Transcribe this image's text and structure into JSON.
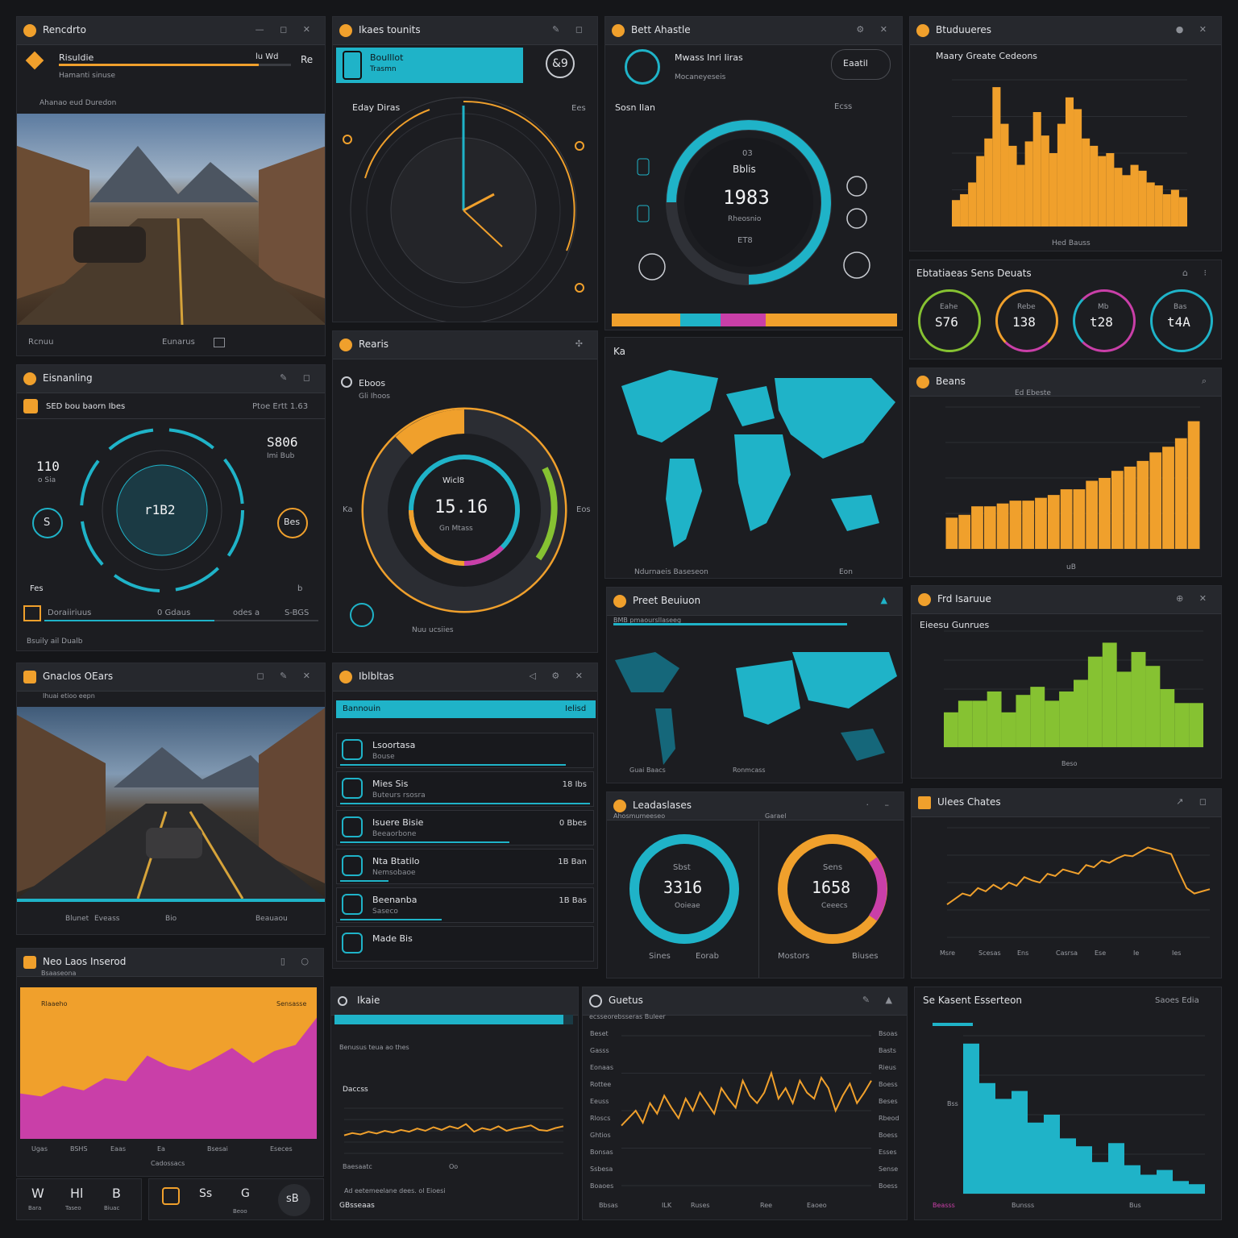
{
  "colors": {
    "accent_orange": "#f0a02c",
    "accent_cyan": "#1fb3c8",
    "accent_magenta": "#c93fa8",
    "accent_green": "#86c232",
    "bg": "#151619",
    "panel": "#1c1d21"
  },
  "p1": {
    "title": "Rencdrto",
    "bar_label": "Risuldie",
    "bar_value": "lu Wd",
    "tag": "Re",
    "sub": "Hamanti sinuse",
    "caption": "Ahanao eud Duredon",
    "footer_left": "Rcnuu",
    "footer_mid": "Eunarus",
    "progress": 0.86
  },
  "p2": {
    "title": "Ikaes tounits",
    "chip_title": "Boulllot",
    "chip_sub": "Trasmn",
    "badge": "&9",
    "gauge_title": "Eday Diras",
    "corner": "Ees"
  },
  "p3": {
    "title": "Bett Ahastle",
    "sub_title": "Mwass Inri Iiras",
    "sub_caption": "Mocaneyeseis",
    "button": "Eaatil",
    "section": "Sosn Ilan",
    "corner": "Ecss",
    "ring_small": "03",
    "ring_label": "Bblis",
    "value": "1983",
    "ring_caption": "Rheosnio",
    "ring_low": "ET8"
  },
  "p4": {
    "title": "Btuduueres",
    "sub_title": "Maary Greate Cedeons",
    "xlabel": "Hed Bauss"
  },
  "p5": {
    "title": "Ebtatiaeas Sens Deuats",
    "gauges": [
      {
        "value": "S76",
        "label": "Eahe"
      },
      {
        "value": "138",
        "label": "Rebe"
      },
      {
        "value": "t28",
        "label": "Mb"
      },
      {
        "value": "t4A",
        "label": "Bas"
      }
    ]
  },
  "p6": {
    "title": "Beans",
    "legend": "Ed Ebeste",
    "xlabel": "uB"
  },
  "p7": {
    "title": "Eisnanling",
    "sub": "SED bou baorn Ibes",
    "right_label": "Ptoe Ertt 1.63",
    "value_right": "S806",
    "value_right_sub": "Imi Bub",
    "value_left": "110",
    "value_left_sub": "o Sia",
    "center": "r1B2",
    "small_left": "S",
    "small_right": "Bes",
    "foot_left": "Fes",
    "foot_right": "b",
    "bar_label": "Doraiiriuus",
    "bar_mid": "0 Gdaus",
    "bar_end": "odes a",
    "bar_value": "S-BGS",
    "caption": "Bsuily ail Dualb",
    "progress": 0.62
  },
  "p8": {
    "title": "Rearis",
    "sub_title": "Eboos",
    "sub_caption": "Gli Ihoos",
    "value": "15.16",
    "caption": "Gn Mtass",
    "top_label": "Wicl8",
    "side_left": "Ka",
    "side_right": "Eos",
    "footer": "Nuu ucsiies"
  },
  "p9": {
    "title": "Ka",
    "footer_left": "Ndurnaeis Baseseon",
    "footer_right": "Eon"
  },
  "p10": {
    "title": "Preet Beuiuon",
    "sub": "BMB pmaoursllaseeg",
    "footer_left": "Guai Baacs",
    "footer_right": "Ronmcass"
  },
  "p11": {
    "title": "Frd Isaruue",
    "sub_title": "Eieesu Gunrues",
    "xlabel": "Beso"
  },
  "p12": {
    "title": "Gnaclos OEars",
    "sub": "Ihuai etioo eepn",
    "footer": [
      "Blunet",
      "Eveass",
      "Bio",
      "Beauaou"
    ]
  },
  "p13": {
    "title": "Iblbltas",
    "banner": "Bannouin",
    "banner_right": "Ielisd",
    "rows": [
      {
        "title": "Lsoortasa",
        "sub": "Bouse",
        "value": ""
      },
      {
        "title": "Mies Sis",
        "sub": "Buteurs rsosra",
        "value": "18  Ibs"
      },
      {
        "title": "Isuere Bisie",
        "sub": "Beeaorbone",
        "value": "0  Bbes"
      },
      {
        "title": "Nta Btatilo",
        "sub": "Nemsobaoe",
        "value": "1B  Ban"
      },
      {
        "title": "Beenanba",
        "sub": "Saseco",
        "value": "1B  Bas"
      },
      {
        "title": "Made Bis",
        "sub": "",
        "value": ""
      }
    ]
  },
  "p14": {
    "title": "Leadaslases",
    "sub": "Ahosmumeeseo",
    "right_label": "Garael",
    "ring1_top": "Sbst",
    "ring1_value": "3316",
    "ring1_sub": "Ooieae",
    "ring2_top": "Sens",
    "ring2_value": "1658",
    "ring2_sub": "Ceeecs",
    "foot": [
      "Sines",
      "Eorab",
      "Mostors",
      "Biuses"
    ]
  },
  "p15": {
    "title": "Ulees Chates",
    "xlabels": [
      "Msre",
      "Scesas",
      "Ens",
      "Casrsa",
      "Ese",
      "Ie",
      "Ies"
    ]
  },
  "p16": {
    "title": "Neo Laos Inserod",
    "sub": "Bsaaseona",
    "left": "Rlaaeho",
    "right": "Sensasse",
    "caption": "Cadossacs",
    "foot": [
      "Ugas",
      "BSHS",
      "Eaas",
      "Ea",
      "Bsesai",
      "Eseces"
    ]
  },
  "p17": {
    "title": "Ikaie",
    "label1": "Benusus teua ao thes",
    "label2": "Daccss",
    "label3": "Baesaatc",
    "label4": "Oo",
    "footer": "Ad eetemeelane dees. ol Eioesi",
    "footer2": "GBsseaas",
    "progress": 0.96
  },
  "p18": {
    "title": "Guetus",
    "sub": "ecsseorebsseras Buleer",
    "yleft": [
      "Beset",
      "Gasss",
      "Eonaas",
      "Rottee",
      "Eeuss",
      "Rloscs",
      "Ghtios",
      "Bonsas",
      "Ssbesa",
      "Boaoes"
    ],
    "yright": [
      "Bsoas",
      "Basts",
      "Rieus",
      "Boess",
      "Beses",
      "Rbeod",
      "Boess",
      "Esses",
      "Sense",
      "Boess"
    ],
    "foot": [
      "Bbsas",
      "ILK",
      "Ruses",
      "Ree",
      "Eaoeo"
    ]
  },
  "p19": {
    "title": "Se Kasent Esserteon",
    "right_label": "Saoes Edia",
    "ylabel": "Bss",
    "foot": [
      "Bunsss",
      "Bus"
    ],
    "corner": "Beasss"
  },
  "dock": {
    "items": [
      "W",
      "Hl",
      "B",
      "E",
      "Ss",
      "G",
      "sB"
    ],
    "labels": [
      "Bara",
      "Taseo",
      "Biuac",
      "",
      "",
      "Beoo",
      ""
    ]
  },
  "chart_data": [
    {
      "type": "bar",
      "name": "panel4",
      "values": [
        18,
        22,
        30,
        48,
        60,
        95,
        70,
        55,
        42,
        58,
        78,
        62,
        50,
        70,
        88,
        80,
        60,
        55,
        48,
        50,
        40,
        35,
        42,
        38,
        30,
        28,
        22,
        25,
        20
      ],
      "ylim": [
        0,
        100
      ]
    },
    {
      "type": "bar",
      "name": "panel6",
      "values": [
        22,
        24,
        30,
        30,
        32,
        34,
        34,
        36,
        38,
        42,
        42,
        48,
        50,
        55,
        58,
        62,
        68,
        72,
        78,
        90
      ],
      "ylim": [
        0,
        100
      ]
    },
    {
      "type": "bar",
      "name": "panel11",
      "values": [
        30,
        40,
        40,
        48,
        30,
        45,
        52,
        40,
        48,
        58,
        78,
        90,
        65,
        82,
        70,
        50,
        38,
        38
      ],
      "ylim": [
        0,
        100
      ]
    },
    {
      "type": "line",
      "name": "panel15",
      "values": [
        30,
        35,
        40,
        38,
        45,
        42,
        48,
        44,
        50,
        47,
        55,
        52,
        50,
        58,
        56,
        62,
        60,
        58,
        66,
        64,
        70,
        68,
        72,
        75,
        74,
        78,
        82,
        80,
        78,
        76,
        60,
        45,
        40,
        42,
        44
      ],
      "ylim": [
        0,
        100
      ]
    },
    {
      "type": "area",
      "name": "panel16",
      "series": [
        {
          "name": "orange",
          "values": [
            100,
            100,
            100,
            100,
            100,
            100,
            100,
            100,
            100,
            100,
            100,
            100,
            100,
            100,
            100
          ]
        },
        {
          "name": "magenta",
          "values": [
            30,
            28,
            35,
            32,
            40,
            38,
            55,
            48,
            45,
            52,
            60,
            50,
            58,
            62,
            80
          ]
        }
      ],
      "ylim": [
        0,
        100
      ]
    },
    {
      "type": "line",
      "name": "panel17",
      "values": [
        40,
        45,
        42,
        48,
        44,
        50,
        46,
        52,
        48,
        55,
        50,
        58,
        52,
        60,
        55,
        65,
        48,
        56,
        52,
        60,
        50,
        55,
        58,
        62,
        52,
        50,
        56,
        60
      ],
      "ylim": [
        0,
        100
      ]
    },
    {
      "type": "line",
      "name": "panel18",
      "values": [
        40,
        45,
        50,
        42,
        55,
        48,
        60,
        52,
        45,
        58,
        50,
        62,
        55,
        48,
        65,
        58,
        52,
        70,
        60,
        55,
        62,
        75,
        58,
        65,
        55,
        70,
        62,
        58,
        72,
        65,
        50,
        60,
        68,
        55,
        62,
        70
      ],
      "ylim": [
        0,
        100
      ]
    },
    {
      "type": "bar",
      "name": "panel19",
      "values": [
        95,
        70,
        60,
        65,
        45,
        50,
        35,
        30,
        20,
        32,
        18,
        12,
        15,
        8,
        6
      ],
      "ylim": [
        0,
        100
      ]
    }
  ]
}
